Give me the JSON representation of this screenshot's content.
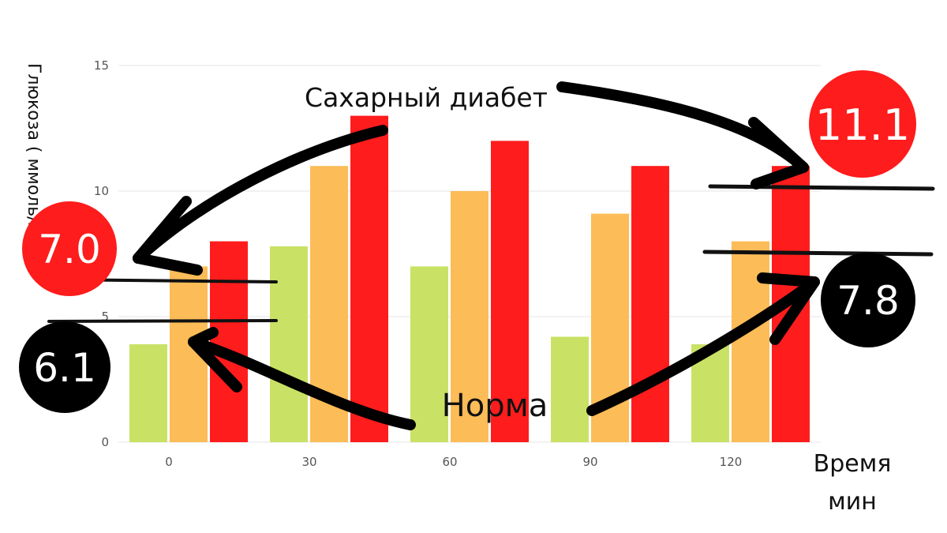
{
  "chart_data": {
    "type": "bar",
    "categories": [
      "0",
      "30",
      "60",
      "90",
      "120"
    ],
    "series": [
      {
        "color": "#c9e265",
        "values": [
          3.9,
          7.8,
          7.0,
          4.2,
          3.9
        ]
      },
      {
        "color": "#fcbc57",
        "values": [
          7.0,
          11.0,
          10.0,
          9.1,
          8.0
        ]
      },
      {
        "color": "#ff1c1c",
        "values": [
          8.0,
          13.0,
          12.0,
          11.0,
          11.0
        ]
      }
    ],
    "ylabel": "Глюкоза ( ммоль/л)",
    "xlabel_line1": "Время",
    "xlabel_line2": "мин",
    "ylim": [
      0,
      15
    ],
    "yticks": [
      "0",
      "5",
      "10",
      "15"
    ],
    "grid": true,
    "legend": "none"
  },
  "annotations": {
    "diabetes_label": "Сахарный диабет",
    "norm_label": "Норма",
    "diabetes_fasting": "7.0",
    "diabetes_120": "11.1",
    "norm_fasting": "6.1",
    "norm_120": "7.8"
  },
  "colors": {
    "red_bubble": "#ff1c1c",
    "black_bubble": "#000000",
    "grid": "#e6e6e6"
  }
}
